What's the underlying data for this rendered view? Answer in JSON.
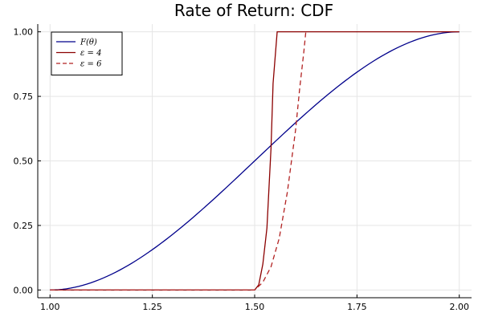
{
  "chart_data": {
    "type": "line",
    "title": "Rate of Return: CDF",
    "xlabel": "",
    "ylabel": "",
    "xlim": [
      0.97,
      2.03
    ],
    "ylim": [
      -0.03,
      1.03
    ],
    "xticks": [
      1.0,
      1.25,
      1.5,
      1.75,
      2.0
    ],
    "xtick_labels": [
      "1.00",
      "1.25",
      "1.50",
      "1.75",
      "2.00"
    ],
    "yticks": [
      0.0,
      0.25,
      0.5,
      0.75,
      1.0
    ],
    "ytick_labels": [
      "0.00",
      "0.25",
      "0.50",
      "0.75",
      "1.00"
    ],
    "grid": true,
    "legend_position": "top-left",
    "series": [
      {
        "name": "F(θ)",
        "color": "#00008b",
        "dash": "solid",
        "x": [
          1.0,
          1.1,
          1.2,
          1.3,
          1.4,
          1.5,
          1.6,
          1.7,
          1.8,
          1.9,
          2.0
        ],
        "y": [
          0.0,
          0.028,
          0.104,
          0.216,
          0.352,
          0.5,
          0.648,
          0.784,
          0.896,
          0.972,
          1.0
        ]
      },
      {
        "name": "ε = 4",
        "color": "#8b0000",
        "dash": "solid",
        "x": [
          1.0,
          1.5,
          1.51,
          1.52,
          1.53,
          1.54,
          1.545,
          1.555,
          2.0
        ],
        "y": [
          0.0,
          0.0,
          0.02,
          0.1,
          0.24,
          0.55,
          0.8,
          1.0,
          1.0
        ]
      },
      {
        "name": "ε = 6",
        "color": "#b22222",
        "dash": "dashed",
        "x": [
          1.0,
          1.5,
          1.52,
          1.54,
          1.56,
          1.58,
          1.6,
          1.61,
          1.62,
          1.625
        ],
        "y": [
          0.0,
          0.0,
          0.03,
          0.09,
          0.2,
          0.38,
          0.62,
          0.78,
          0.92,
          1.0
        ]
      }
    ]
  }
}
